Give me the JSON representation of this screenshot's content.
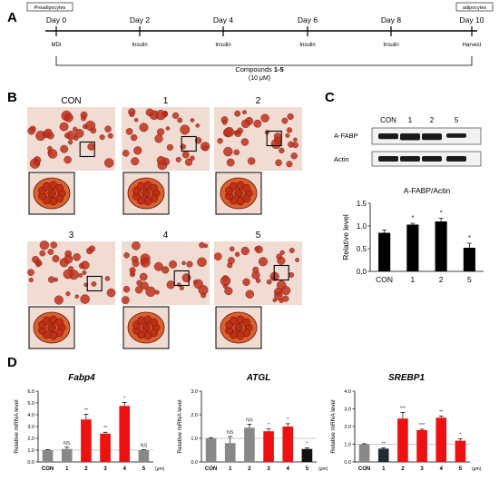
{
  "panels": {
    "A": "A",
    "B": "B",
    "C": "C",
    "D": "D"
  },
  "timeline": {
    "left_box": "Preadipocytes",
    "right_box": "adipocytes",
    "days": [
      "Day 0",
      "Day 2",
      "Day 4",
      "Day 6",
      "Day 8",
      "Day 10"
    ],
    "treatments": [
      "MDI",
      "Insulin",
      "Insulin",
      "Insulin",
      "Insulin",
      "Harvest"
    ],
    "compounds_prefix": "Compounds ",
    "compounds_bold": "1-5",
    "concentration": "(10 μM)"
  },
  "micrographs": {
    "labels": [
      "CON",
      "1",
      "2",
      "3",
      "4",
      "5"
    ],
    "stain_color": "#c0301c",
    "background_color": "#f0dcd2"
  },
  "western": {
    "lanes": [
      "CON",
      "1",
      "2",
      "5"
    ],
    "rows": [
      "A-FABP",
      "Actin"
    ]
  },
  "chart_data": [
    {
      "type": "bar",
      "title": "A-FABP/Actin",
      "ylabel": "Relative level",
      "categories": [
        "CON",
        "1",
        "2",
        "5"
      ],
      "values": [
        0.85,
        1.03,
        1.1,
        0.52
      ],
      "errors": [
        0.06,
        0.03,
        0.07,
        0.1
      ],
      "significance": [
        "",
        "*",
        "*",
        "*"
      ],
      "ylim": [
        0,
        1.5
      ],
      "yticks": [
        "0.0",
        "0.5",
        "1.0",
        "1.5"
      ],
      "colors": [
        "#000000",
        "#000000",
        "#000000",
        "#000000"
      ]
    },
    {
      "type": "bar",
      "title": "Fabp4",
      "ylabel": "Relative mRNA level",
      "categories": [
        "CON",
        "1",
        "2",
        "3",
        "4",
        "5"
      ],
      "unit": "(μm)",
      "values": [
        1.0,
        1.1,
        3.6,
        2.4,
        4.75,
        1.0
      ],
      "errors": [
        0.05,
        0.15,
        0.45,
        0.12,
        0.3,
        0.05
      ],
      "significance": [
        "",
        "NS",
        "**",
        "**",
        "*",
        "NS"
      ],
      "ylim": [
        0,
        6
      ],
      "yticks": [
        "0.0",
        "1.0",
        "2.0",
        "3.0",
        "4.0",
        "5.0",
        "6.0"
      ],
      "colors": [
        "#888888",
        "#888888",
        "#ee1111",
        "#ee1111",
        "#ee1111",
        "#888888"
      ]
    },
    {
      "type": "bar",
      "title": "ATGL",
      "ylabel": "Relative mRNA level",
      "categories": [
        "CON",
        "1",
        "2",
        "3",
        "4",
        "5"
      ],
      "unit": "(μm)",
      "values": [
        1.0,
        0.8,
        1.45,
        1.3,
        1.5,
        0.55
      ],
      "errors": [
        0.03,
        0.28,
        0.15,
        0.1,
        0.12,
        0.05
      ],
      "significance": [
        "",
        "NS",
        "NS",
        "*",
        "*",
        "*"
      ],
      "ylim": [
        0,
        3
      ],
      "yticks": [
        "0.0",
        "1.0",
        "2.0",
        "3.0"
      ],
      "colors": [
        "#888888",
        "#888888",
        "#888888",
        "#ee1111",
        "#ee1111",
        "#111111"
      ]
    },
    {
      "type": "bar",
      "title": "SREBP1",
      "ylabel": "Relative mRNA level",
      "categories": [
        "CON",
        "1",
        "2",
        "3",
        "4",
        "5"
      ],
      "unit": "(μm)",
      "values": [
        1.0,
        0.75,
        2.45,
        1.8,
        2.5,
        1.2
      ],
      "errors": [
        0.03,
        0.05,
        0.35,
        0.05,
        0.1,
        0.1
      ],
      "significance": [
        "",
        "**",
        "***",
        "***",
        "**",
        "*"
      ],
      "ylim": [
        0,
        4
      ],
      "yticks": [
        "0.0",
        "1.0",
        "2.0",
        "3.0",
        "4.0"
      ],
      "colors": [
        "#888888",
        "#222a38",
        "#ee1111",
        "#ee1111",
        "#ee1111",
        "#ee1111"
      ]
    }
  ]
}
